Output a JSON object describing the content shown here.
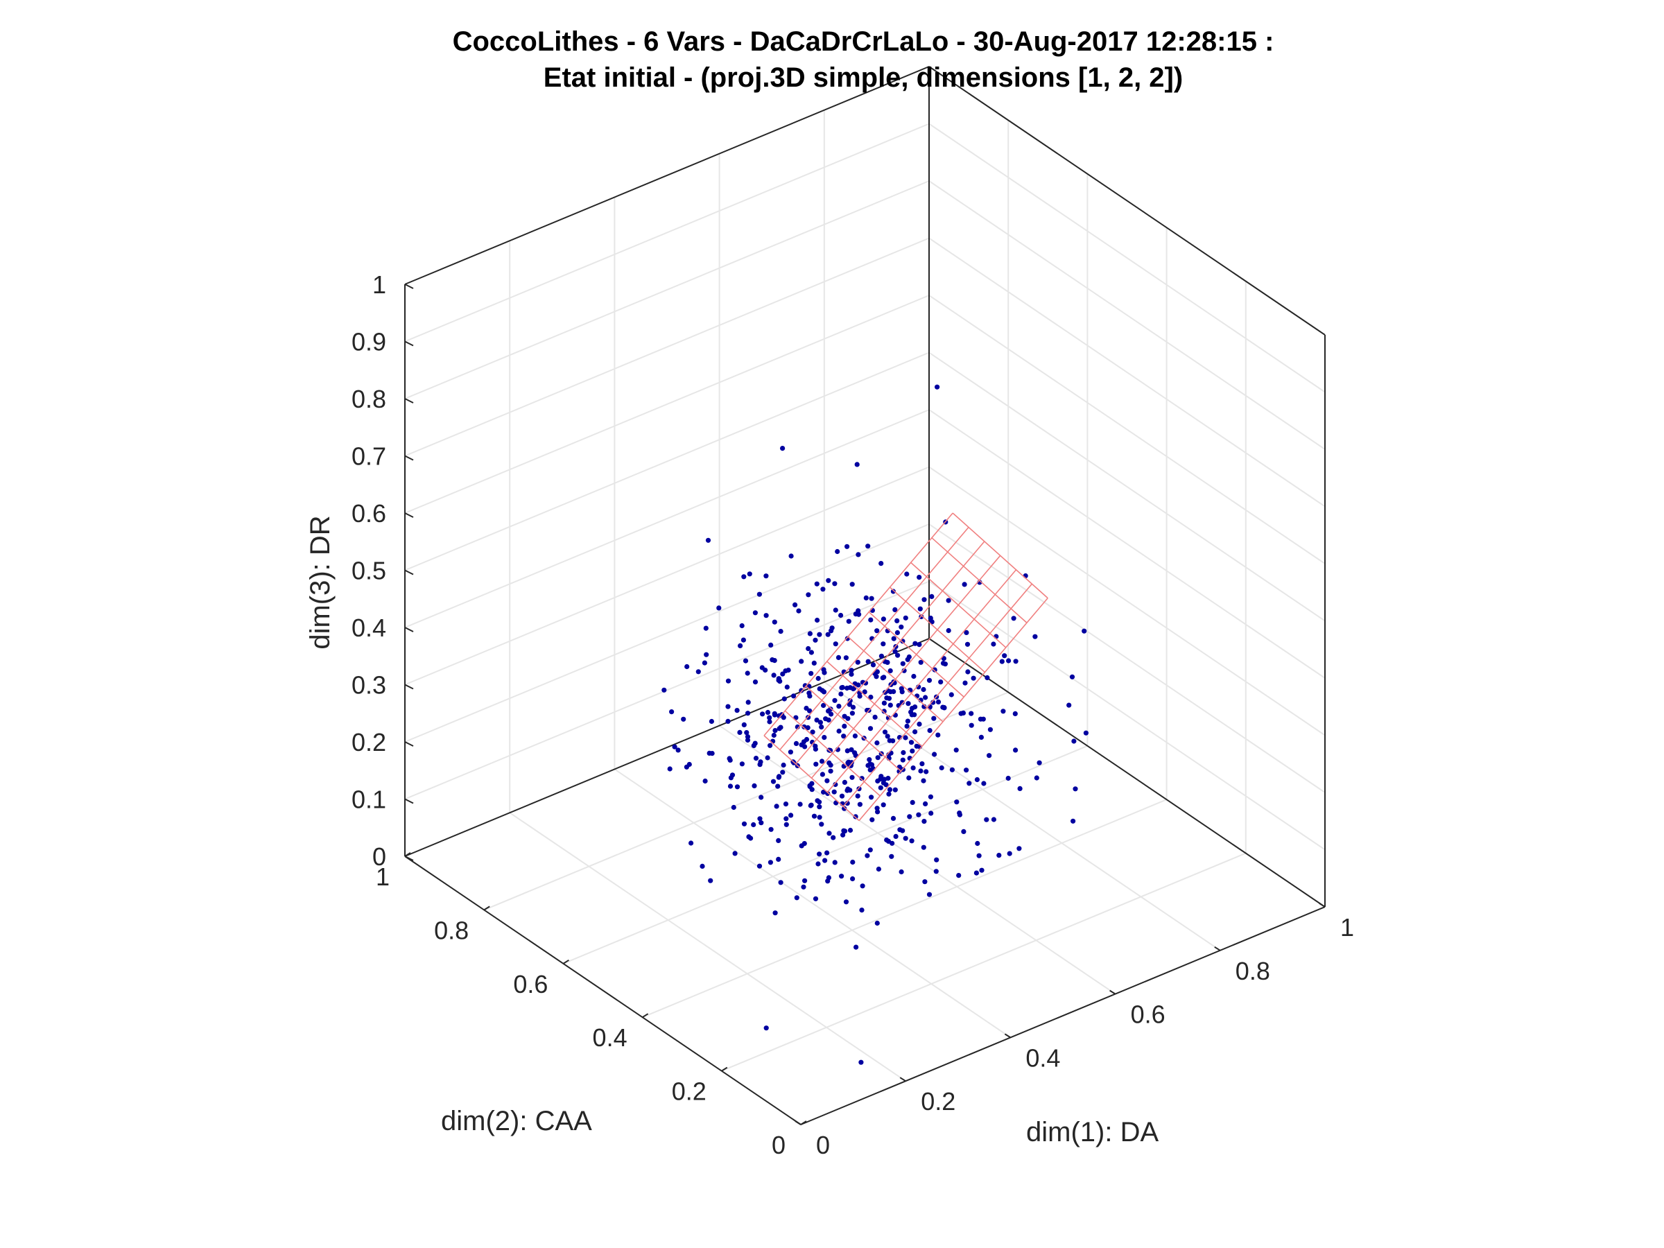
{
  "chart_data": {
    "type": "scatter",
    "title": {
      "line1": "CoccoLithes - 6 Vars - DaCaDrCrLaLo - 30-Aug-2017 12:28:15 :",
      "line2": "Etat initial - (proj.3D simple, dimensions [1, 2, 2])"
    },
    "x_axis": {
      "label": "dim(1): DA",
      "range": [
        0,
        1
      ],
      "ticks": [
        "0",
        "0.2",
        "0.4",
        "0.6",
        "0.8",
        "1"
      ]
    },
    "y_axis": {
      "label": "dim(2): CAA",
      "range": [
        0,
        1
      ],
      "ticks": [
        "0",
        "0.2",
        "0.4",
        "0.6",
        "0.8",
        "1"
      ]
    },
    "z_axis": {
      "label": "dim(3): DR",
      "range": [
        0,
        1
      ],
      "ticks": [
        "0",
        "0.1",
        "0.2",
        "0.3",
        "0.4",
        "0.5",
        "0.6",
        "0.7",
        "0.8",
        "0.9",
        "1"
      ]
    },
    "view": "3D isometric (azimuth -135, elevation ~35)",
    "grid": true,
    "series": [
      {
        "marker": "dot",
        "color": "#0000a0",
        "approx_count": 550,
        "distribution": "point cloud centered near (0.40, 0.40, 0.35), spread ~0.12 per axis, elongated along DR"
      },
      {
        "marker": "mesh",
        "color": "#f08080",
        "description": "planar grid lattice (prototype map) through the center of the cloud"
      }
    ],
    "sample_points": [
      [
        0.13,
        0.02,
        0.05
      ],
      [
        0.22,
        0.55,
        0.45
      ],
      [
        0.6,
        0.45,
        0.85
      ],
      [
        0.6,
        0.28,
        0.46
      ],
      [
        0.32,
        0.47,
        0.84
      ],
      [
        0.47,
        0.48,
        0.75
      ],
      [
        0.43,
        0.4,
        0.66
      ],
      [
        0.25,
        0.22,
        0.4
      ]
    ]
  }
}
